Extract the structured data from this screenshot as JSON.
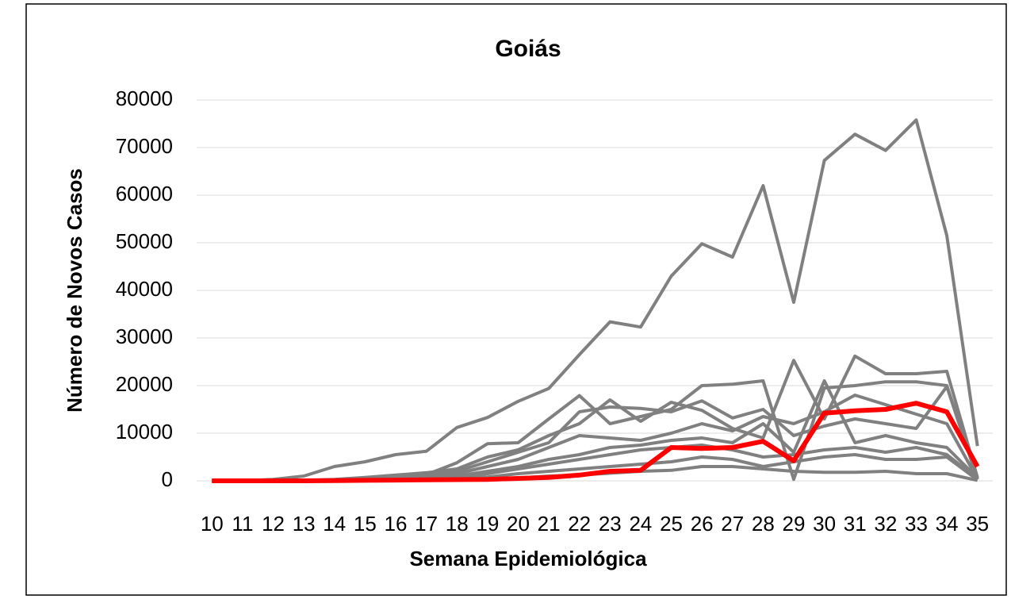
{
  "chart_data": {
    "type": "line",
    "title": "Goiás",
    "x_label": "Semana Epidemiológica",
    "y_label": "Número de Novos Casos",
    "categories": [
      "10",
      "11",
      "12",
      "13",
      "14",
      "15",
      "16",
      "17",
      "18",
      "19",
      "20",
      "21",
      "22",
      "23",
      "24",
      "25",
      "26",
      "27",
      "28",
      "29",
      "30",
      "31",
      "32",
      "33",
      "34",
      "35"
    ],
    "ylim": [
      0,
      80000
    ],
    "yticks": [
      0,
      10000,
      20000,
      30000,
      40000,
      50000,
      60000,
      70000,
      80000
    ],
    "grid": true,
    "series": [
      {
        "color": "#808080",
        "values": [
          0,
          0,
          300,
          1000,
          3000,
          4000,
          5500,
          6200,
          11200,
          13300,
          16700,
          19400,
          26500,
          33400,
          32300,
          43000,
          49800,
          47000,
          62000,
          37500,
          67300,
          72800,
          69400,
          75800,
          51500,
          7300
        ]
      },
      {
        "color": "#808080",
        "values": [
          0,
          0,
          0,
          100,
          300,
          700,
          1200,
          1700,
          2500,
          5000,
          6500,
          9500,
          12000,
          17000,
          12500,
          16500,
          14800,
          11000,
          9000,
          25300,
          13000,
          26200,
          22500,
          22500,
          23000,
          700
        ]
      },
      {
        "color": "#808080",
        "values": [
          0,
          0,
          0,
          0,
          200,
          500,
          900,
          1300,
          3800,
          7800,
          8000,
          13000,
          17900,
          12000,
          13500,
          15000,
          20000,
          20300,
          21000,
          300,
          19500,
          20000,
          20800,
          20800,
          20000,
          500
        ]
      },
      {
        "color": "#808080",
        "values": [
          0,
          0,
          0,
          0,
          100,
          300,
          600,
          1000,
          2000,
          4000,
          6000,
          8000,
          14500,
          15500,
          15200,
          14500,
          16800,
          13200,
          15000,
          9500,
          11500,
          13000,
          12000,
          11000,
          19800,
          300
        ]
      },
      {
        "color": "#808080",
        "values": [
          0,
          0,
          0,
          0,
          50,
          200,
          400,
          700,
          1500,
          3000,
          4500,
          7000,
          9500,
          9000,
          8500,
          10000,
          12000,
          10500,
          13500,
          12000,
          14500,
          18000,
          16000,
          14000,
          12000,
          400
        ]
      },
      {
        "color": "#808080",
        "values": [
          0,
          0,
          0,
          0,
          50,
          100,
          300,
          500,
          1000,
          2000,
          3000,
          4500,
          5500,
          7000,
          7500,
          8500,
          9000,
          8000,
          12000,
          6000,
          21000,
          8000,
          9500,
          8000,
          7000,
          600
        ]
      },
      {
        "color": "#808080",
        "values": [
          0,
          0,
          0,
          0,
          0,
          100,
          200,
          400,
          700,
          1500,
          2500,
          3500,
          4500,
          5500,
          6500,
          7000,
          7500,
          6500,
          5000,
          5500,
          6500,
          7000,
          6000,
          7000,
          5500,
          400
        ]
      },
      {
        "color": "#808080",
        "values": [
          0,
          0,
          0,
          0,
          0,
          50,
          100,
          200,
          400,
          800,
          1500,
          2000,
          2500,
          3000,
          3500,
          4000,
          5000,
          4500,
          3000,
          4000,
          5000,
          5500,
          4500,
          4500,
          5000,
          200
        ]
      },
      {
        "color": "#808080",
        "values": [
          0,
          0,
          0,
          0,
          0,
          0,
          50,
          100,
          200,
          400,
          600,
          1000,
          1200,
          1600,
          2000,
          2200,
          3000,
          3000,
          2500,
          2000,
          1800,
          1800,
          2000,
          1500,
          1500,
          100
        ]
      },
      {
        "color": "#ff0000",
        "values": [
          0,
          0,
          0,
          0,
          50,
          100,
          150,
          200,
          250,
          300,
          500,
          700,
          1200,
          2000,
          2200,
          7000,
          6800,
          7000,
          8300,
          4200,
          14200,
          14700,
          15000,
          16300,
          14500,
          3000
        ]
      }
    ]
  }
}
